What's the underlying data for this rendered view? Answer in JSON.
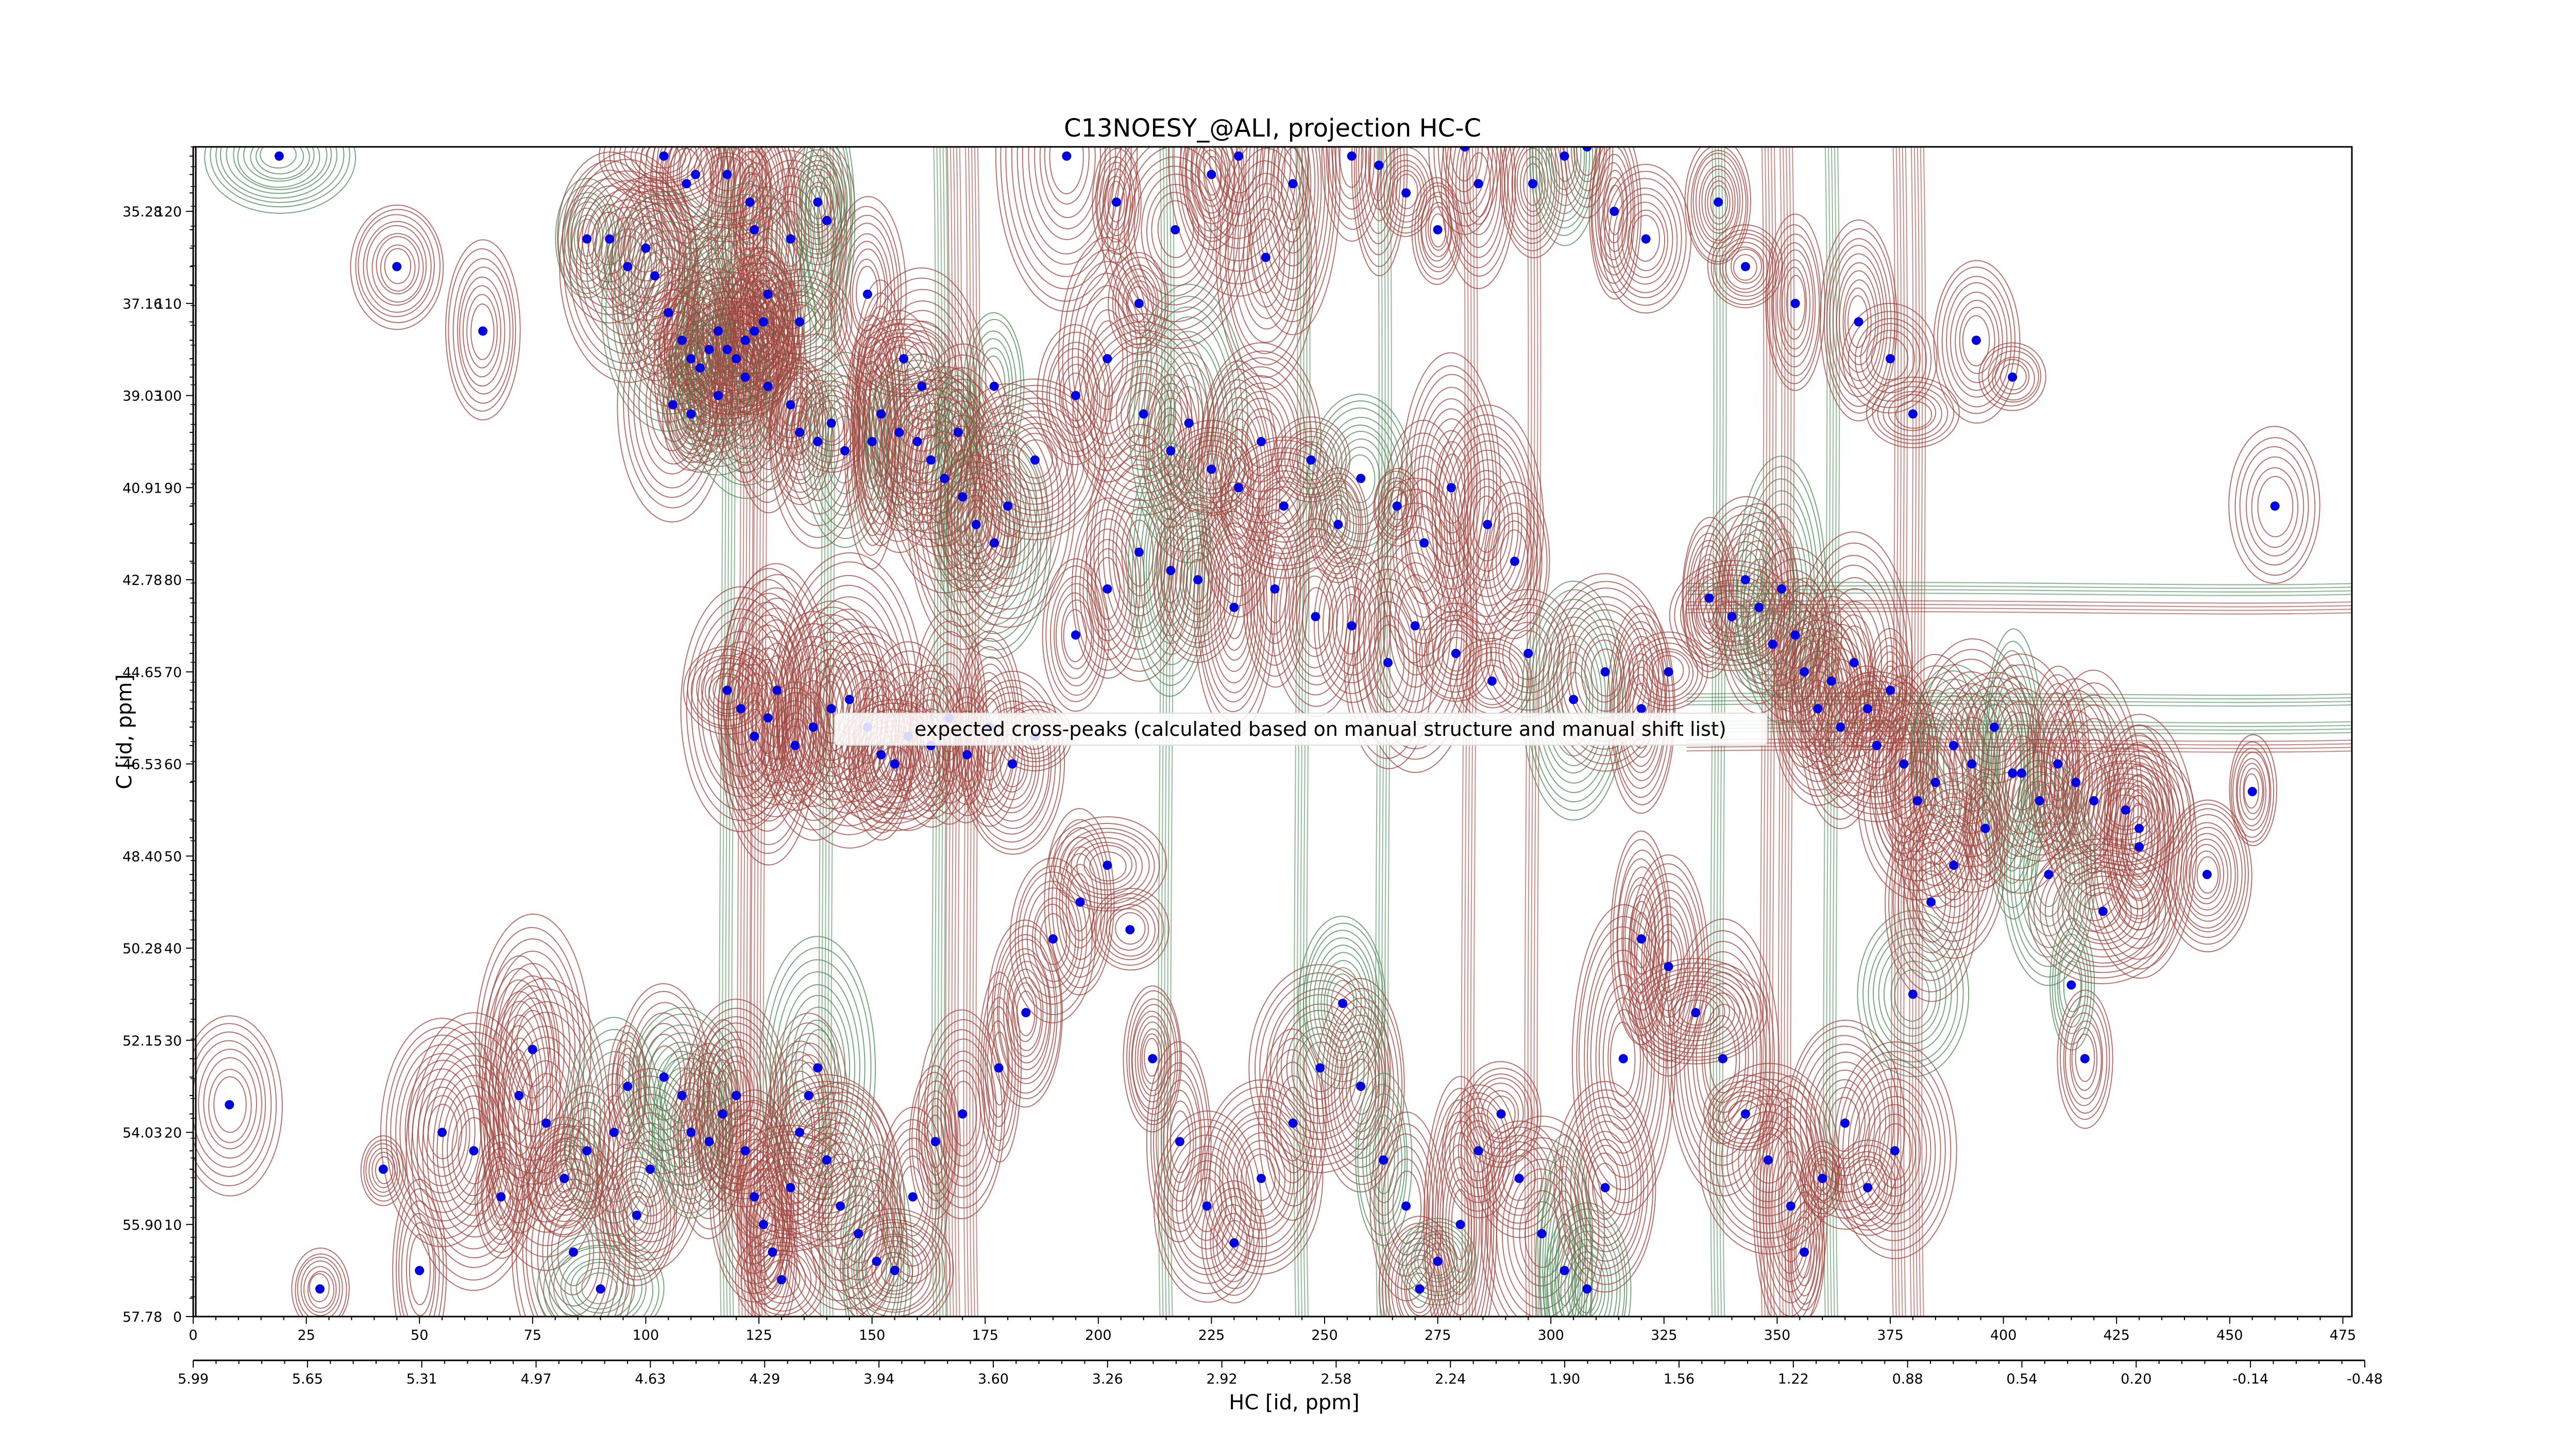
{
  "chart_data": {
    "type": "scatter",
    "title": "C13NOESY_@ALI, projection HC-C",
    "xlabel": "HC [id, ppm]",
    "ylabel": "C [id, ppm]",
    "x_index_ticks": [
      0,
      25,
      50,
      75,
      100,
      125,
      150,
      175,
      200,
      225,
      250,
      275,
      300,
      325,
      350,
      375,
      400,
      425,
      450,
      475
    ],
    "x_ppm_ticks": [
      "5.99",
      "5.65",
      "5.31",
      "4.97",
      "4.63",
      "4.29",
      "3.94",
      "3.60",
      "3.26",
      "2.92",
      "2.58",
      "2.24",
      "1.90",
      "1.56",
      "1.22",
      "0.88",
      "0.54",
      "0.20",
      "-0.14",
      "-0.48"
    ],
    "y_index_ticks": [
      0,
      10,
      20,
      30,
      40,
      50,
      60,
      70,
      80,
      90,
      100,
      110,
      120
    ],
    "y_ppm_ticks": [
      "57.78",
      "55.90",
      "54.03",
      "52.15",
      "50.28",
      "48.40",
      "46.53",
      "44.65",
      "42.78",
      "40.91",
      "39.03",
      "37.16",
      "35.28"
    ],
    "xlim": [
      0,
      477
    ],
    "ylim": [
      0,
      127
    ],
    "legend": {
      "text": "expected cross-peaks (calculated based on manual structure and manual shift list)",
      "placement": "center"
    },
    "colors": {
      "positive_contour": "#a0433c",
      "negative_contour": "#4a8a55",
      "peaks": "#0000e0"
    },
    "peaks": [
      [
        19,
        126
      ],
      [
        45,
        114
      ],
      [
        64,
        107
      ],
      [
        87,
        117
      ],
      [
        92,
        117
      ],
      [
        96,
        114
      ],
      [
        100,
        116
      ],
      [
        104,
        126
      ],
      [
        109,
        123
      ],
      [
        111,
        124
      ],
      [
        118,
        124
      ],
      [
        123,
        121
      ],
      [
        124,
        118
      ],
      [
        127,
        111
      ],
      [
        132,
        117
      ],
      [
        134,
        108
      ],
      [
        138,
        121
      ],
      [
        140,
        119
      ],
      [
        149,
        111
      ],
      [
        157,
        104
      ],
      [
        161,
        101
      ],
      [
        169,
        96
      ],
      [
        177,
        101
      ],
      [
        193,
        126
      ],
      [
        204,
        121
      ],
      [
        209,
        110
      ],
      [
        217,
        118
      ],
      [
        225,
        124
      ],
      [
        231,
        126
      ],
      [
        237,
        115
      ],
      [
        243,
        123
      ],
      [
        256,
        126
      ],
      [
        262,
        125
      ],
      [
        268,
        122
      ],
      [
        275,
        118
      ],
      [
        281,
        127
      ],
      [
        284,
        123
      ],
      [
        296,
        123
      ],
      [
        303,
        126
      ],
      [
        308,
        127
      ],
      [
        314,
        120
      ],
      [
        321,
        117
      ],
      [
        337,
        121
      ],
      [
        343,
        114
      ],
      [
        354,
        110
      ],
      [
        368,
        108
      ],
      [
        375,
        104
      ],
      [
        380,
        98
      ],
      [
        394,
        106
      ],
      [
        402,
        102
      ],
      [
        102,
        113
      ],
      [
        105,
        109
      ],
      [
        108,
        106
      ],
      [
        110,
        104
      ],
      [
        112,
        103
      ],
      [
        114,
        105
      ],
      [
        116,
        107
      ],
      [
        118,
        105
      ],
      [
        120,
        104
      ],
      [
        122,
        106
      ],
      [
        124,
        107
      ],
      [
        126,
        108
      ],
      [
        106,
        99
      ],
      [
        110,
        98
      ],
      [
        116,
        100
      ],
      [
        122,
        102
      ],
      [
        127,
        101
      ],
      [
        132,
        99
      ],
      [
        134,
        96
      ],
      [
        138,
        95
      ],
      [
        141,
        97
      ],
      [
        144,
        94
      ],
      [
        150,
        95
      ],
      [
        152,
        98
      ],
      [
        156,
        96
      ],
      [
        160,
        95
      ],
      [
        163,
        93
      ],
      [
        166,
        91
      ],
      [
        170,
        89
      ],
      [
        173,
        86
      ],
      [
        177,
        84
      ],
      [
        180,
        88
      ],
      [
        186,
        93
      ],
      [
        195,
        100
      ],
      [
        202,
        104
      ],
      [
        210,
        98
      ],
      [
        216,
        94
      ],
      [
        220,
        97
      ],
      [
        225,
        92
      ],
      [
        231,
        90
      ],
      [
        236,
        95
      ],
      [
        241,
        88
      ],
      [
        247,
        93
      ],
      [
        253,
        86
      ],
      [
        258,
        91
      ],
      [
        266,
        88
      ],
      [
        272,
        84
      ],
      [
        278,
        90
      ],
      [
        286,
        86
      ],
      [
        292,
        82
      ],
      [
        118,
        68
      ],
      [
        121,
        66
      ],
      [
        124,
        63
      ],
      [
        127,
        65
      ],
      [
        129,
        68
      ],
      [
        133,
        62
      ],
      [
        137,
        64
      ],
      [
        141,
        66
      ],
      [
        145,
        67
      ],
      [
        149,
        64
      ],
      [
        152,
        61
      ],
      [
        155,
        60
      ],
      [
        158,
        63
      ],
      [
        163,
        62
      ],
      [
        167,
        65
      ],
      [
        171,
        61
      ],
      [
        176,
        64
      ],
      [
        181,
        60
      ],
      [
        186,
        63
      ],
      [
        195,
        74
      ],
      [
        202,
        79
      ],
      [
        209,
        83
      ],
      [
        216,
        81
      ],
      [
        222,
        80
      ],
      [
        230,
        77
      ],
      [
        239,
        79
      ],
      [
        248,
        76
      ],
      [
        256,
        75
      ],
      [
        264,
        71
      ],
      [
        270,
        75
      ],
      [
        279,
        72
      ],
      [
        287,
        69
      ],
      [
        295,
        72
      ],
      [
        305,
        67
      ],
      [
        312,
        70
      ],
      [
        320,
        66
      ],
      [
        326,
        70
      ],
      [
        335,
        78
      ],
      [
        340,
        76
      ],
      [
        343,
        80
      ],
      [
        346,
        77
      ],
      [
        349,
        73
      ],
      [
        351,
        79
      ],
      [
        354,
        74
      ],
      [
        356,
        70
      ],
      [
        359,
        66
      ],
      [
        362,
        69
      ],
      [
        364,
        64
      ],
      [
        367,
        71
      ],
      [
        370,
        66
      ],
      [
        372,
        62
      ],
      [
        375,
        68
      ],
      [
        378,
        60
      ],
      [
        381,
        56
      ],
      [
        385,
        58
      ],
      [
        389,
        62
      ],
      [
        393,
        60
      ],
      [
        398,
        64
      ],
      [
        402,
        59
      ],
      [
        408,
        56
      ],
      [
        412,
        60
      ],
      [
        416,
        58
      ],
      [
        420,
        56
      ],
      [
        427,
        55
      ],
      [
        430,
        51
      ],
      [
        8,
        23
      ],
      [
        28,
        3
      ],
      [
        42,
        16
      ],
      [
        50,
        5
      ],
      [
        55,
        20
      ],
      [
        62,
        18
      ],
      [
        68,
        13
      ],
      [
        72,
        24
      ],
      [
        75,
        29
      ],
      [
        78,
        21
      ],
      [
        82,
        15
      ],
      [
        84,
        7
      ],
      [
        87,
        18
      ],
      [
        90,
        3
      ],
      [
        93,
        20
      ],
      [
        96,
        25
      ],
      [
        98,
        11
      ],
      [
        101,
        16
      ],
      [
        104,
        26
      ],
      [
        108,
        24
      ],
      [
        110,
        20
      ],
      [
        114,
        19
      ],
      [
        117,
        22
      ],
      [
        120,
        24
      ],
      [
        122,
        18
      ],
      [
        124,
        13
      ],
      [
        126,
        10
      ],
      [
        128,
        7
      ],
      [
        130,
        4
      ],
      [
        132,
        14
      ],
      [
        134,
        20
      ],
      [
        136,
        24
      ],
      [
        138,
        27
      ],
      [
        140,
        17
      ],
      [
        143,
        12
      ],
      [
        147,
        9
      ],
      [
        151,
        6
      ],
      [
        155,
        5
      ],
      [
        159,
        13
      ],
      [
        164,
        19
      ],
      [
        170,
        22
      ],
      [
        178,
        27
      ],
      [
        184,
        33
      ],
      [
        190,
        41
      ],
      [
        196,
        45
      ],
      [
        202,
        49
      ],
      [
        207,
        42
      ],
      [
        212,
        28
      ],
      [
        218,
        19
      ],
      [
        224,
        12
      ],
      [
        230,
        8
      ],
      [
        236,
        15
      ],
      [
        243,
        21
      ],
      [
        249,
        27
      ],
      [
        254,
        34
      ],
      [
        258,
        25
      ],
      [
        263,
        17
      ],
      [
        268,
        12
      ],
      [
        271,
        3
      ],
      [
        275,
        6
      ],
      [
        280,
        10
      ],
      [
        284,
        18
      ],
      [
        289,
        22
      ],
      [
        293,
        15
      ],
      [
        298,
        9
      ],
      [
        303,
        5
      ],
      [
        308,
        3
      ],
      [
        312,
        14
      ],
      [
        316,
        28
      ],
      [
        320,
        41
      ],
      [
        326,
        38
      ],
      [
        332,
        33
      ],
      [
        338,
        28
      ],
      [
        343,
        22
      ],
      [
        348,
        17
      ],
      [
        353,
        12
      ],
      [
        356,
        7
      ],
      [
        360,
        15
      ],
      [
        365,
        21
      ],
      [
        370,
        14
      ],
      [
        376,
        18
      ],
      [
        380,
        35
      ],
      [
        384,
        45
      ],
      [
        389,
        49
      ],
      [
        396,
        53
      ],
      [
        404,
        59
      ],
      [
        410,
        48
      ],
      [
        415,
        36
      ],
      [
        418,
        28
      ],
      [
        422,
        44
      ],
      [
        430,
        53
      ],
      [
        445,
        48
      ],
      [
        455,
        57
      ],
      [
        460,
        88
      ]
    ]
  }
}
